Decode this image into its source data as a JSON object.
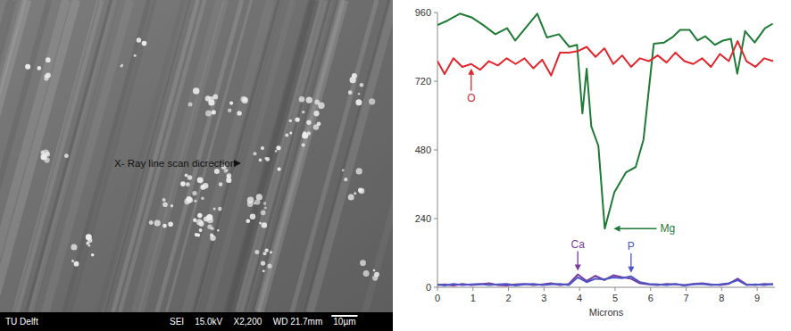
{
  "image": {
    "arrow_label": "X- Ray line scan dicrection",
    "footer": [
      "TU Delft",
      "SEI",
      "15.0kV",
      "X2,200",
      "WD 21.7mm",
      "10µm"
    ]
  },
  "chart_data": {
    "type": "line",
    "x_label": "Microns",
    "xlim": [
      0,
      9.5
    ],
    "xticks": [
      0,
      1,
      2,
      3,
      4,
      5,
      6,
      7,
      8,
      9
    ],
    "ylim": [
      0,
      960
    ],
    "yticks": [
      0,
      240,
      480,
      720,
      960
    ],
    "grid": false,
    "series": [
      {
        "name": "Mg",
        "color": "#1e7b35",
        "x": [
          0,
          0.29,
          0.63,
          0.96,
          1.29,
          1.63,
          1.96,
          2.19,
          2.52,
          2.81,
          3.08,
          3.42,
          3.71,
          3.93,
          4.08,
          4.2,
          4.33,
          4.53,
          4.71,
          4.98,
          5.31,
          5.58,
          5.8,
          6.09,
          6.38,
          6.61,
          6.83,
          7.1,
          7.32,
          7.54,
          7.81,
          8.04,
          8.26,
          8.44,
          8.66,
          8.93,
          9.22,
          9.44
        ],
        "values": [
          916,
          932,
          956,
          943,
          916,
          884,
          905,
          862,
          912,
          956,
          873,
          884,
          840,
          847,
          607,
          764,
          562,
          494,
          205,
          332,
          402,
          420,
          516,
          851,
          855,
          873,
          899,
          899,
          862,
          877,
          847,
          862,
          868,
          746,
          895,
          855,
          905,
          921
        ]
      },
      {
        "name": "O",
        "color": "#e3262e",
        "x": [
          0,
          0.2,
          0.45,
          0.7,
          0.95,
          1.2,
          1.45,
          1.7,
          1.95,
          2.2,
          2.45,
          2.7,
          2.95,
          3.2,
          3.45,
          3.7,
          3.95,
          4.2,
          4.45,
          4.7,
          4.95,
          5.2,
          5.45,
          5.7,
          5.95,
          6.2,
          6.45,
          6.7,
          6.95,
          7.2,
          7.45,
          7.7,
          7.95,
          8.2,
          8.45,
          8.7,
          8.95,
          9.2,
          9.45
        ],
        "values": [
          790,
          745,
          800,
          770,
          780,
          760,
          790,
          775,
          800,
          780,
          800,
          765,
          795,
          740,
          820,
          820,
          825,
          840,
          805,
          835,
          780,
          810,
          770,
          800,
          790,
          810,
          785,
          820,
          790,
          780,
          800,
          770,
          815,
          790,
          860,
          790,
          770,
          800,
          790
        ]
      },
      {
        "name": "Ca",
        "color": "#7a3a9e",
        "x": [
          0,
          0.2,
          0.45,
          0.7,
          0.95,
          1.2,
          1.45,
          1.7,
          1.95,
          2.2,
          2.45,
          2.7,
          2.95,
          3.2,
          3.45,
          3.7,
          3.95,
          4.2,
          4.45,
          4.7,
          4.95,
          5.2,
          5.45,
          5.7,
          5.95,
          6.2,
          6.45,
          6.7,
          6.95,
          7.2,
          7.45,
          7.7,
          7.95,
          8.2,
          8.45,
          8.7,
          8.95,
          9.2,
          9.45
        ],
        "values": [
          8,
          10,
          6,
          12,
          8,
          10,
          14,
          8,
          6,
          10,
          12,
          8,
          10,
          14,
          8,
          12,
          45,
          22,
          40,
          25,
          42,
          35,
          30,
          14,
          10,
          8,
          12,
          10,
          8,
          12,
          14,
          10,
          8,
          12,
          30,
          10,
          8,
          12,
          10
        ]
      },
      {
        "name": "P",
        "color": "#4b55c6",
        "x": [
          0,
          0.2,
          0.45,
          0.7,
          0.95,
          1.2,
          1.45,
          1.7,
          1.95,
          2.2,
          2.45,
          2.7,
          2.95,
          3.2,
          3.45,
          3.7,
          3.95,
          4.2,
          4.45,
          4.7,
          4.95,
          5.2,
          5.45,
          5.7,
          5.95,
          6.2,
          6.45,
          6.7,
          6.95,
          7.2,
          7.45,
          7.7,
          7.95,
          8.2,
          8.45,
          8.7,
          8.95,
          9.2,
          9.45
        ],
        "values": [
          10,
          6,
          12,
          8,
          10,
          12,
          8,
          10,
          12,
          6,
          10,
          12,
          8,
          10,
          12,
          8,
          35,
          18,
          30,
          28,
          34,
          32,
          38,
          18,
          12,
          10,
          8,
          12,
          6,
          10,
          12,
          8,
          10,
          14,
          25,
          8,
          10,
          8,
          12
        ]
      }
    ]
  }
}
